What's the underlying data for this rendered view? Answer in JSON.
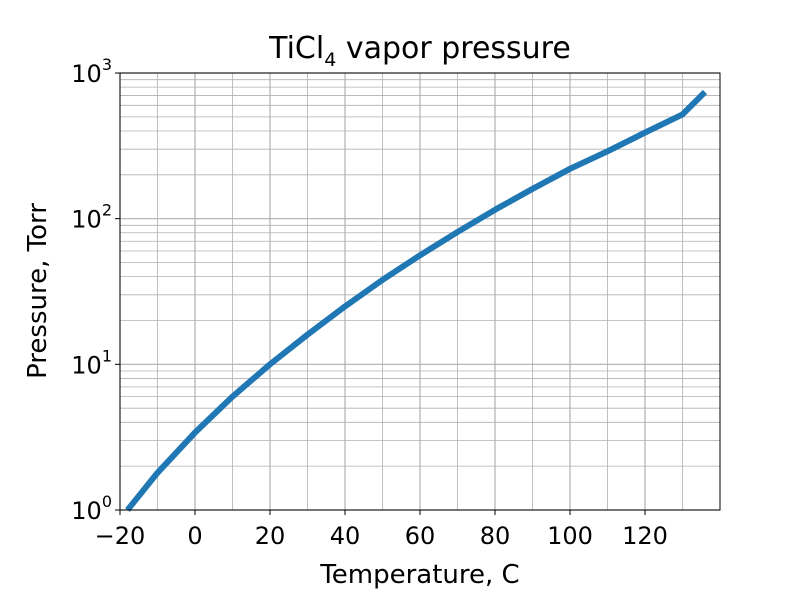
{
  "chart_data": {
    "type": "line",
    "title": "TiCl",
    "title_subscript": "4",
    "title_rest": " vapor pressure",
    "xlabel": "Temperature, C",
    "ylabel": "Pressure, Torr",
    "xlim": [
      -20,
      140
    ],
    "ylim": [
      1,
      1000
    ],
    "y_scale": "log",
    "grid": true,
    "grid_minor": true,
    "x_ticks": [
      {
        "value": -20,
        "label": "−20"
      },
      {
        "value": 0,
        "label": "0"
      },
      {
        "value": 20,
        "label": "20"
      },
      {
        "value": 40,
        "label": "40"
      },
      {
        "value": 60,
        "label": "60"
      },
      {
        "value": 80,
        "label": "80"
      },
      {
        "value": 100,
        "label": "100"
      },
      {
        "value": 120,
        "label": "120"
      }
    ],
    "y_ticks": [
      {
        "value": 1,
        "base": "10",
        "exp": "0"
      },
      {
        "value": 10,
        "base": "10",
        "exp": "1"
      },
      {
        "value": 100,
        "base": "10",
        "exp": "2"
      },
      {
        "value": 1000,
        "base": "10",
        "exp": "3"
      }
    ],
    "series": [
      {
        "color": "#1f77b4",
        "x": [
          -18,
          -10,
          0,
          10,
          20,
          30,
          40,
          50,
          60,
          70,
          80,
          90,
          100,
          110,
          120,
          130,
          136
        ],
        "y": [
          1.0,
          1.8,
          3.4,
          6.0,
          10.0,
          16.0,
          25.0,
          38.0,
          56.0,
          81.0,
          115.0,
          160.0,
          220.0,
          290.0,
          390.0,
          520.0,
          740.0
        ]
      }
    ]
  }
}
